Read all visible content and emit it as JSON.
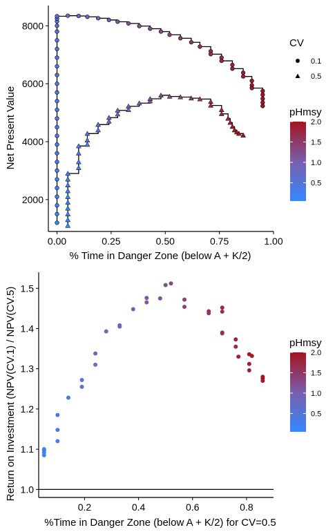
{
  "colors": {
    "low": "#3388ff",
    "mid": "#7a5eab",
    "high": "#a3141f",
    "line": "#000000"
  },
  "chart_data": [
    {
      "type": "scatter",
      "xlabel": "% Time in Danger Zone (below A + K/2)",
      "ylabel": "Net Present Value",
      "xlim": [
        -0.04,
        1.0
      ],
      "ylim": [
        900,
        8700
      ],
      "xticks": [
        0.0,
        0.25,
        0.5,
        0.75,
        1.0
      ],
      "xtick_labels": [
        "0.00",
        "0.25",
        "0.50",
        "0.75",
        "1.00"
      ],
      "yticks": [
        2000,
        4000,
        6000,
        8000
      ],
      "ytick_labels": [
        "2000",
        "4000",
        "6000",
        "8000"
      ],
      "grid": false,
      "shape_legend": {
        "title": "CV",
        "items": [
          {
            "label": "0.1",
            "shape": "circle"
          },
          {
            "label": "0.5",
            "shape": "triangle"
          }
        ]
      },
      "color_legend": {
        "title": "pHmsy",
        "min": 0.05,
        "max": 2.0,
        "ticks": [
          0.5,
          1.0,
          1.5,
          2.0
        ],
        "tick_labels": [
          "0.5",
          "1.0",
          "1.5",
          "2.0"
        ]
      },
      "series": [
        {
          "name": "0.1",
          "shape": "circle",
          "x": [
            0.0,
            0.0,
            0.0,
            0.0,
            0.0,
            0.0,
            0.0,
            0.0,
            0.0,
            0.0,
            0.0,
            0.0,
            0.0,
            0.0,
            0.0,
            0.0,
            0.0,
            0.0,
            0.0,
            0.0,
            0.0,
            0.0,
            0.0,
            0.0,
            0.0,
            0.0,
            0.0,
            0.05,
            0.1,
            0.14,
            0.19,
            0.24,
            0.28,
            0.33,
            0.38,
            0.43,
            0.48,
            0.52,
            0.57,
            0.62,
            0.66,
            0.71,
            0.71,
            0.76,
            0.76,
            0.81,
            0.81,
            0.86,
            0.86,
            0.9,
            0.9,
            0.9,
            0.95,
            0.95,
            0.95,
            0.95,
            0.95
          ],
          "y": [
            1200,
            1500,
            1800,
            2100,
            2400,
            2700,
            3000,
            3300,
            3600,
            3900,
            4200,
            4500,
            4800,
            5100,
            5400,
            5700,
            6000,
            6300,
            6600,
            6900,
            7200,
            7500,
            7800,
            8000,
            8150,
            8250,
            8330,
            8350,
            8340,
            8310,
            8260,
            8200,
            8140,
            8080,
            7990,
            7900,
            7800,
            7690,
            7570,
            7430,
            7280,
            7120,
            7020,
            6900,
            6790,
            6650,
            6520,
            6380,
            6250,
            6100,
            5950,
            5850,
            5750,
            5620,
            5480,
            5350,
            5230
          ],
          "c": [
            0.05,
            0.08,
            0.1,
            0.13,
            0.15,
            0.18,
            0.2,
            0.23,
            0.25,
            0.28,
            0.3,
            0.33,
            0.35,
            0.38,
            0.4,
            0.43,
            0.45,
            0.48,
            0.5,
            0.53,
            0.55,
            0.58,
            0.6,
            0.63,
            0.65,
            0.68,
            0.7,
            0.8,
            0.86,
            0.92,
            0.98,
            1.04,
            1.1,
            1.16,
            1.22,
            1.28,
            1.34,
            1.4,
            1.46,
            1.52,
            1.58,
            1.64,
            1.68,
            1.72,
            1.76,
            1.8,
            1.83,
            1.86,
            1.89,
            1.91,
            1.93,
            1.95,
            1.96,
            1.97,
            1.98,
            1.99,
            2.0
          ]
        },
        {
          "name": "0.5",
          "shape": "triangle",
          "x": [
            0.05,
            0.05,
            0.05,
            0.05,
            0.05,
            0.05,
            0.05,
            0.05,
            0.05,
            0.05,
            0.1,
            0.1,
            0.1,
            0.1,
            0.14,
            0.14,
            0.14,
            0.19,
            0.19,
            0.24,
            0.24,
            0.28,
            0.28,
            0.33,
            0.33,
            0.38,
            0.43,
            0.43,
            0.48,
            0.52,
            0.57,
            0.62,
            0.66,
            0.71,
            0.71,
            0.76,
            0.76,
            0.79,
            0.8,
            0.81,
            0.82,
            0.83,
            0.84,
            0.86
          ],
          "y": [
            1100,
            1300,
            1500,
            1700,
            1900,
            2100,
            2300,
            2500,
            2700,
            2900,
            3100,
            3300,
            3600,
            3850,
            3900,
            4050,
            4280,
            4400,
            4590,
            4700,
            4830,
            4950,
            5080,
            5100,
            5220,
            5330,
            5400,
            5480,
            5600,
            5560,
            5540,
            5500,
            5470,
            5380,
            5250,
            5100,
            4960,
            4800,
            4660,
            4520,
            4400,
            4330,
            4280,
            4220
          ],
          "c": [
            0.05,
            0.07,
            0.09,
            0.11,
            0.13,
            0.15,
            0.17,
            0.19,
            0.21,
            0.23,
            0.26,
            0.3,
            0.34,
            0.38,
            0.42,
            0.46,
            0.5,
            0.55,
            0.6,
            0.66,
            0.72,
            0.78,
            0.84,
            0.9,
            0.96,
            1.02,
            1.1,
            1.16,
            1.24,
            1.32,
            1.4,
            1.48,
            1.56,
            1.62,
            1.68,
            1.74,
            1.8,
            1.85,
            1.89,
            1.92,
            1.95,
            1.97,
            1.99,
            2.0
          ]
        }
      ]
    },
    {
      "type": "scatter",
      "xlabel": "%Time in Danger Zone (below A + K/2) for CV=0.5",
      "ylabel": "Return on Investment (NPV(CV.1) / NPV(CV.5)",
      "xlim": [
        0.03,
        0.9
      ],
      "ylim": [
        0.98,
        1.54
      ],
      "xticks": [
        0.2,
        0.4,
        0.6,
        0.8
      ],
      "xtick_labels": [
        "0.2",
        "0.4",
        "0.6",
        "0.8"
      ],
      "yticks": [
        1.0,
        1.1,
        1.2,
        1.3,
        1.4,
        1.5
      ],
      "ytick_labels": [
        "1.0",
        "1.1",
        "1.2",
        "1.3",
        "1.4",
        "1.5"
      ],
      "hline": 1.0,
      "grid": false,
      "color_legend": {
        "title": "pHmsy",
        "min": 0.05,
        "max": 2.0,
        "ticks": [
          0.5,
          1.0,
          1.5,
          2.0
        ],
        "tick_labels": [
          "0.5",
          "1.0",
          "1.5",
          "2.0"
        ]
      },
      "x": [
        0.05,
        0.05,
        0.05,
        0.05,
        0.1,
        0.1,
        0.1,
        0.14,
        0.19,
        0.19,
        0.24,
        0.24,
        0.28,
        0.33,
        0.33,
        0.38,
        0.43,
        0.43,
        0.48,
        0.5,
        0.52,
        0.57,
        0.57,
        0.66,
        0.66,
        0.71,
        0.71,
        0.71,
        0.71,
        0.76,
        0.76,
        0.77,
        0.81,
        0.81,
        0.82,
        0.81,
        0.86,
        0.86,
        0.86
      ],
      "y": [
        1.085,
        1.092,
        1.097,
        1.1,
        1.12,
        1.148,
        1.185,
        1.228,
        1.255,
        1.272,
        1.31,
        1.338,
        1.393,
        1.405,
        1.408,
        1.448,
        1.465,
        1.476,
        1.475,
        1.508,
        1.512,
        1.454,
        1.472,
        1.438,
        1.443,
        1.388,
        1.39,
        1.442,
        1.452,
        1.355,
        1.373,
        1.33,
        1.296,
        1.312,
        1.332,
        1.336,
        1.27,
        1.276,
        1.28
      ],
      "c": [
        0.1,
        0.14,
        0.18,
        0.22,
        0.28,
        0.34,
        0.4,
        0.46,
        0.54,
        0.6,
        0.68,
        0.74,
        0.8,
        0.86,
        0.92,
        1.0,
        1.06,
        1.12,
        1.18,
        1.24,
        1.3,
        1.38,
        1.42,
        1.5,
        1.54,
        1.6,
        1.64,
        1.66,
        1.7,
        1.74,
        1.78,
        1.8,
        1.86,
        1.88,
        1.9,
        1.92,
        1.95,
        1.97,
        2.0
      ]
    }
  ]
}
